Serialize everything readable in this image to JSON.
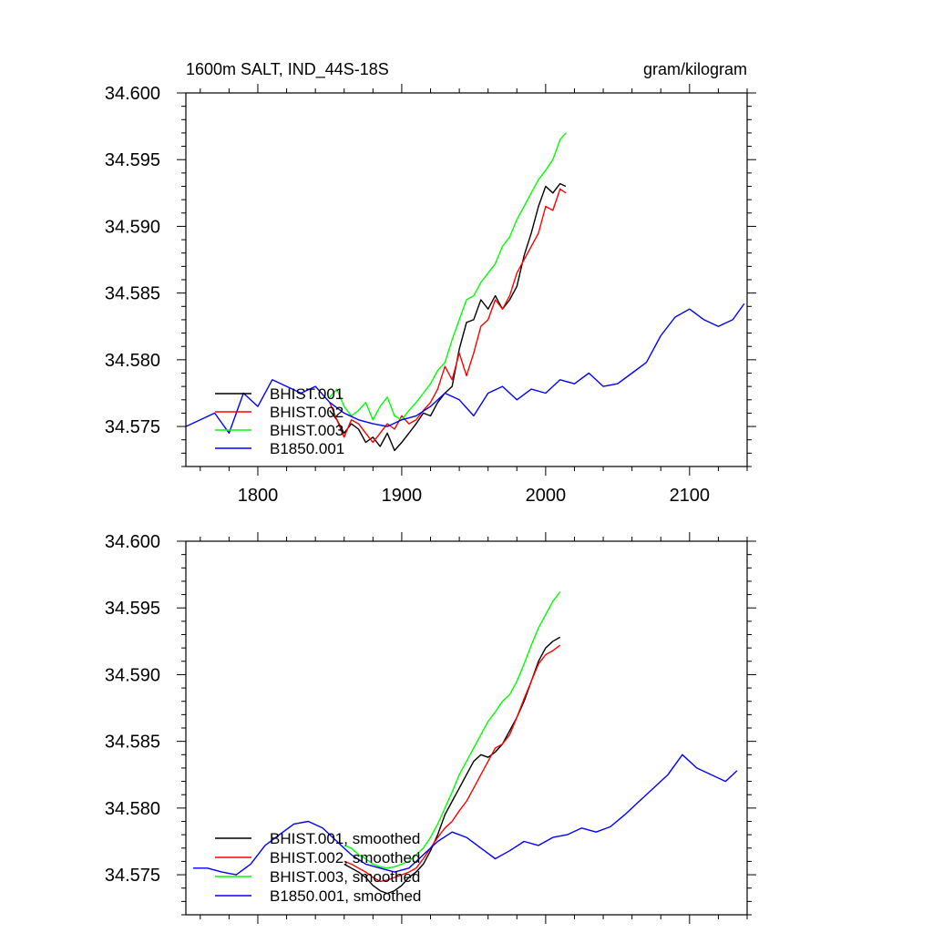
{
  "chart_data": [
    {
      "type": "line",
      "title": "1600m SALT, IND_44S-18S",
      "units": "gram/kilogram",
      "xlabel": "",
      "ylabel": "",
      "xlim": [
        1750,
        2140
      ],
      "ylim": [
        34.572,
        34.6
      ],
      "xticks": [
        1800,
        1900,
        2000,
        2100
      ],
      "xtick_labels": [
        "1800",
        "1900",
        "2000",
        "2100"
      ],
      "yticks": [
        34.575,
        34.58,
        34.585,
        34.59,
        34.595,
        34.6
      ],
      "ytick_labels": [
        "34.575",
        "34.580",
        "34.585",
        "34.590",
        "34.595",
        "34.600"
      ],
      "grid": false,
      "legend_position": "bottom-left",
      "series": [
        {
          "name": "BHIST.001",
          "color": "#000000",
          "x": [
            1850,
            1855,
            1860,
            1865,
            1870,
            1875,
            1880,
            1885,
            1890,
            1895,
            1900,
            1905,
            1910,
            1915,
            1920,
            1925,
            1930,
            1935,
            1940,
            1945,
            1950,
            1955,
            1960,
            1965,
            1970,
            1975,
            1980,
            1985,
            1990,
            1995,
            2000,
            2005,
            2010,
            2014
          ],
          "y": [
            34.5762,
            34.5755,
            34.5745,
            34.5752,
            34.5748,
            34.5738,
            34.5742,
            34.5735,
            34.5745,
            34.5732,
            34.5738,
            34.5745,
            34.5752,
            34.576,
            34.5758,
            34.5768,
            34.5775,
            34.578,
            34.5808,
            34.5828,
            34.583,
            34.5845,
            34.5838,
            34.5848,
            34.5838,
            34.5845,
            34.5855,
            34.5878,
            34.5895,
            34.5915,
            34.593,
            34.5925,
            34.5932,
            34.593
          ]
        },
        {
          "name": "BHIST.002",
          "color": "#ff0000",
          "x": [
            1850,
            1855,
            1860,
            1865,
            1870,
            1875,
            1880,
            1885,
            1890,
            1895,
            1900,
            1905,
            1910,
            1915,
            1920,
            1925,
            1930,
            1935,
            1940,
            1945,
            1950,
            1955,
            1960,
            1965,
            1970,
            1975,
            1980,
            1985,
            1990,
            1995,
            2000,
            2005,
            2010,
            2014
          ],
          "y": [
            34.5768,
            34.5755,
            34.5742,
            34.5755,
            34.5752,
            34.5745,
            34.5738,
            34.5745,
            34.5752,
            34.5748,
            34.5758,
            34.5752,
            34.5755,
            34.5762,
            34.5768,
            34.5778,
            34.5795,
            34.5785,
            34.5805,
            34.5788,
            34.5805,
            34.5825,
            34.583,
            34.5845,
            34.5838,
            34.5848,
            34.5865,
            34.5875,
            34.5885,
            34.5895,
            34.5915,
            34.5912,
            34.5928,
            34.5925
          ]
        },
        {
          "name": "BHIST.003",
          "color": "#00ff00",
          "x": [
            1850,
            1855,
            1860,
            1865,
            1870,
            1875,
            1880,
            1885,
            1890,
            1895,
            1900,
            1905,
            1910,
            1915,
            1920,
            1925,
            1930,
            1935,
            1940,
            1945,
            1950,
            1955,
            1960,
            1965,
            1970,
            1975,
            1980,
            1985,
            1990,
            1995,
            2000,
            2005,
            2010,
            2014
          ],
          "y": [
            34.5772,
            34.5778,
            34.5765,
            34.5758,
            34.5762,
            34.5768,
            34.5755,
            34.5765,
            34.5772,
            34.5758,
            34.5755,
            34.5762,
            34.5768,
            34.5775,
            34.5782,
            34.5792,
            34.5798,
            34.5815,
            34.583,
            34.5845,
            34.5848,
            34.5858,
            34.5865,
            34.5872,
            34.5885,
            34.5892,
            34.5905,
            34.5915,
            34.5925,
            34.5935,
            34.5942,
            34.595,
            34.5965,
            34.597
          ]
        },
        {
          "name": "B1850.001",
          "color": "#0000ff",
          "x": [
            1750,
            1760,
            1770,
            1780,
            1790,
            1800,
            1810,
            1820,
            1830,
            1840,
            1850,
            1860,
            1870,
            1880,
            1890,
            1900,
            1910,
            1920,
            1930,
            1940,
            1950,
            1960,
            1970,
            1980,
            1990,
            2000,
            2010,
            2020,
            2030,
            2040,
            2050,
            2060,
            2070,
            2080,
            2090,
            2100,
            2110,
            2120,
            2130,
            2138
          ],
          "y": [
            34.575,
            34.5755,
            34.576,
            34.5745,
            34.5775,
            34.5765,
            34.5785,
            34.578,
            34.5775,
            34.578,
            34.5768,
            34.576,
            34.5755,
            34.5752,
            34.575,
            34.5755,
            34.5758,
            34.5765,
            34.5775,
            34.577,
            34.5758,
            34.5775,
            34.578,
            34.577,
            34.5778,
            34.5775,
            34.5785,
            34.5782,
            34.579,
            34.578,
            34.5782,
            34.579,
            34.5798,
            34.5818,
            34.5832,
            34.5838,
            34.583,
            34.5825,
            34.583,
            34.5842
          ]
        }
      ]
    },
    {
      "type": "line",
      "title": "",
      "units": "",
      "xlabel": "",
      "ylabel": "",
      "xlim": [
        1750,
        2140
      ],
      "ylim": [
        34.572,
        34.6
      ],
      "xticks": [
        1800,
        1900,
        2000,
        2100
      ],
      "yticks": [
        34.575,
        34.58,
        34.585,
        34.59,
        34.595,
        34.6
      ],
      "ytick_labels": [
        "34.575",
        "34.580",
        "34.585",
        "34.590",
        "34.595",
        "34.600"
      ],
      "grid": false,
      "legend_position": "bottom-left",
      "series": [
        {
          "name": "BHIST.001, smoothed",
          "color": "#000000",
          "x": [
            1860,
            1865,
            1870,
            1875,
            1880,
            1885,
            1890,
            1895,
            1900,
            1905,
            1910,
            1915,
            1920,
            1925,
            1930,
            1935,
            1940,
            1945,
            1950,
            1955,
            1960,
            1965,
            1970,
            1975,
            1980,
            1985,
            1990,
            1995,
            2000,
            2005,
            2010
          ],
          "y": [
            34.5758,
            34.5755,
            34.5752,
            34.5748,
            34.5742,
            34.5738,
            34.5736,
            34.5738,
            34.5742,
            34.5748,
            34.5752,
            34.5758,
            34.5768,
            34.578,
            34.5795,
            34.5805,
            34.5815,
            34.5825,
            34.5835,
            34.584,
            34.5838,
            34.5842,
            34.5848,
            34.5858,
            34.5868,
            34.588,
            34.5895,
            34.591,
            34.592,
            34.5925,
            34.5928
          ]
        },
        {
          "name": "BHIST.002, smoothed",
          "color": "#ff0000",
          "x": [
            1860,
            1865,
            1870,
            1875,
            1880,
            1885,
            1890,
            1895,
            1900,
            1905,
            1910,
            1915,
            1920,
            1925,
            1930,
            1935,
            1940,
            1945,
            1950,
            1955,
            1960,
            1965,
            1970,
            1975,
            1980,
            1985,
            1990,
            1995,
            2000,
            2005,
            2010
          ],
          "y": [
            34.576,
            34.5758,
            34.5755,
            34.5752,
            34.5748,
            34.5745,
            34.5746,
            34.5748,
            34.575,
            34.5752,
            34.5755,
            34.5762,
            34.577,
            34.5778,
            34.5785,
            34.579,
            34.5798,
            34.5805,
            34.5815,
            34.5825,
            34.5835,
            34.5845,
            34.5848,
            34.5855,
            34.5868,
            34.5882,
            34.5895,
            34.5908,
            34.5915,
            34.5918,
            34.5922
          ]
        },
        {
          "name": "BHIST.003, smoothed",
          "color": "#00ff00",
          "x": [
            1860,
            1865,
            1870,
            1875,
            1880,
            1885,
            1890,
            1895,
            1900,
            1905,
            1910,
            1915,
            1920,
            1925,
            1930,
            1935,
            1940,
            1945,
            1950,
            1955,
            1960,
            1965,
            1970,
            1975,
            1980,
            1985,
            1990,
            1995,
            2000,
            2005,
            2010
          ],
          "y": [
            34.5772,
            34.577,
            34.5765,
            34.5762,
            34.5758,
            34.5756,
            34.5755,
            34.5756,
            34.5758,
            34.576,
            34.5765,
            34.577,
            34.5778,
            34.5788,
            34.58,
            34.5812,
            34.5825,
            34.5835,
            34.5845,
            34.5855,
            34.5865,
            34.5872,
            34.588,
            34.5885,
            34.5895,
            34.5908,
            34.5922,
            34.5935,
            34.5945,
            34.5955,
            34.5962
          ]
        },
        {
          "name": "B1850.001, smoothed",
          "color": "#0000ff",
          "x": [
            1755,
            1765,
            1775,
            1785,
            1795,
            1805,
            1815,
            1825,
            1835,
            1845,
            1855,
            1865,
            1875,
            1885,
            1895,
            1905,
            1915,
            1925,
            1935,
            1945,
            1955,
            1965,
            1975,
            1985,
            1995,
            2005,
            2015,
            2025,
            2035,
            2045,
            2055,
            2065,
            2075,
            2085,
            2095,
            2105,
            2115,
            2125,
            2133
          ],
          "y": [
            34.5755,
            34.5755,
            34.5752,
            34.575,
            34.5758,
            34.5772,
            34.578,
            34.5788,
            34.579,
            34.5785,
            34.5775,
            34.5765,
            34.5758,
            34.5755,
            34.5752,
            34.5755,
            34.5765,
            34.5775,
            34.5782,
            34.5778,
            34.577,
            34.5762,
            34.5768,
            34.5775,
            34.5772,
            34.5778,
            34.578,
            34.5785,
            34.5782,
            34.5786,
            34.5795,
            34.5805,
            34.5815,
            34.5825,
            34.584,
            34.583,
            34.5825,
            34.582,
            34.5828
          ]
        }
      ]
    }
  ]
}
